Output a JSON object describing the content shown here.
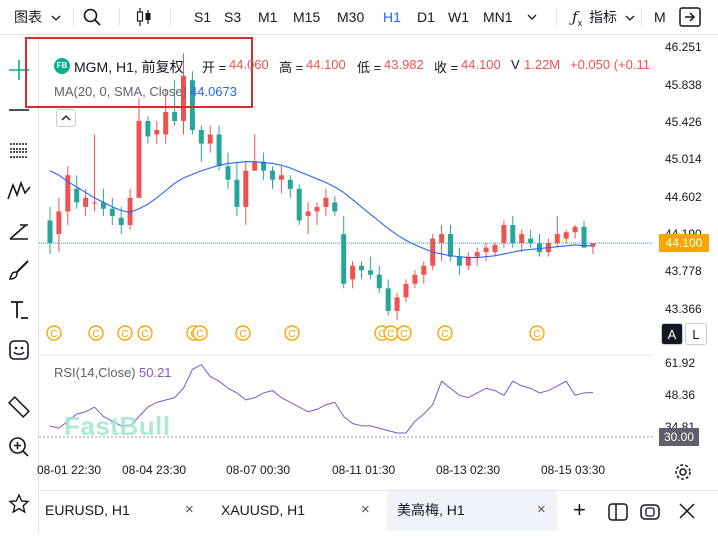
{
  "toolbar": {
    "chart_type_label": "图表",
    "timeframes": [
      "S1",
      "S3",
      "M1",
      "M15",
      "M30",
      "H1",
      "D1",
      "W1",
      "MN1"
    ],
    "active_timeframe": "H1",
    "indicators_label": "指标",
    "m_label": "M"
  },
  "legend": {
    "symbol_badge": "FB",
    "symbol": "MGM, H1, 前复权",
    "open_label": "开 =",
    "open": "44.060",
    "high_label": "高 =",
    "high": "44.100",
    "low_label": "低 =",
    "low": "43.982",
    "close_label": "收 =",
    "close": "44.100",
    "volume_label": "V",
    "volume": "1.22M",
    "change": "+0.050 (+0.11",
    "ma_label": "MA(20, 0, SMA, Close)",
    "ma_value": "44.0673"
  },
  "rsi": {
    "label": "RSI(14,Close)",
    "value": "50.21"
  },
  "watermark": "FastBull",
  "y_axis": {
    "price_ticks": [
      "46.251",
      "45.838",
      "45.426",
      "45.014",
      "44.602",
      "44.190",
      "43.778",
      "43.366"
    ],
    "current_price": "44.100",
    "rsi_ticks": [
      "61.92",
      "48.36",
      "34.81"
    ],
    "rsi_current": "30.00",
    "scale_auto": "A",
    "scale_log": "L"
  },
  "x_axis": {
    "ticks": [
      "08-01 22:30",
      "08-04 23:30",
      "08-07 00:30",
      "08-11 01:30",
      "08-13 02:30",
      "08-15 03:30"
    ]
  },
  "tabs": [
    {
      "label": "EURUSD, H1",
      "close": "×"
    },
    {
      "label": "XAUUSD, H1",
      "close": "×"
    },
    {
      "label": "美高梅, H1",
      "close": "×",
      "active": true
    }
  ],
  "tabs_add": "+",
  "colors": {
    "up": "#ef5350",
    "down": "#26a69a",
    "ma": "#2962ff",
    "rsi": "#7e57c2",
    "accent": "#2962ff",
    "current_price_bg": "#f7a600",
    "event_icon": "#f7a600",
    "highlight_box": "#d32f2f"
  },
  "chart_data": {
    "type": "candlestick",
    "symbol": "MGM",
    "timeframe": "H1",
    "ylim": [
      43.25,
      46.4
    ],
    "candles": [
      {
        "o": 44.35,
        "h": 44.5,
        "l": 43.98,
        "c": 44.1
      },
      {
        "o": 44.2,
        "h": 44.6,
        "l": 44.0,
        "c": 44.45
      },
      {
        "o": 44.45,
        "h": 44.95,
        "l": 44.3,
        "c": 44.85
      },
      {
        "o": 44.7,
        "h": 44.85,
        "l": 44.48,
        "c": 44.55
      },
      {
        "o": 44.5,
        "h": 44.7,
        "l": 44.4,
        "c": 44.6
      },
      {
        "o": 44.55,
        "h": 45.3,
        "l": 44.45,
        "c": 44.55
      },
      {
        "o": 44.55,
        "h": 44.7,
        "l": 44.4,
        "c": 44.48
      },
      {
        "o": 44.48,
        "h": 44.6,
        "l": 44.3,
        "c": 44.4
      },
      {
        "o": 44.38,
        "h": 44.5,
        "l": 44.2,
        "c": 44.3
      },
      {
        "o": 44.3,
        "h": 44.7,
        "l": 44.25,
        "c": 44.6
      },
      {
        "o": 44.6,
        "h": 45.7,
        "l": 44.6,
        "c": 45.45
      },
      {
        "o": 45.45,
        "h": 45.5,
        "l": 45.2,
        "c": 45.28
      },
      {
        "o": 45.3,
        "h": 45.45,
        "l": 45.2,
        "c": 45.35
      },
      {
        "o": 45.3,
        "h": 45.8,
        "l": 45.2,
        "c": 45.55
      },
      {
        "o": 45.55,
        "h": 45.9,
        "l": 45.4,
        "c": 45.45
      },
      {
        "o": 45.45,
        "h": 46.2,
        "l": 45.3,
        "c": 45.95
      },
      {
        "o": 45.9,
        "h": 46.0,
        "l": 45.3,
        "c": 45.35
      },
      {
        "o": 45.35,
        "h": 45.4,
        "l": 45.0,
        "c": 45.2
      },
      {
        "o": 45.2,
        "h": 45.4,
        "l": 45.1,
        "c": 45.3
      },
      {
        "o": 45.3,
        "h": 45.4,
        "l": 44.9,
        "c": 44.95
      },
      {
        "o": 44.95,
        "h": 45.1,
        "l": 44.7,
        "c": 44.8
      },
      {
        "o": 44.8,
        "h": 45.0,
        "l": 44.4,
        "c": 44.5
      },
      {
        "o": 44.5,
        "h": 45.0,
        "l": 44.3,
        "c": 44.9
      },
      {
        "o": 44.9,
        "h": 45.3,
        "l": 44.9,
        "c": 45.0
      },
      {
        "o": 45.0,
        "h": 45.1,
        "l": 44.8,
        "c": 44.9
      },
      {
        "o": 44.9,
        "h": 44.95,
        "l": 44.7,
        "c": 44.8
      },
      {
        "o": 44.8,
        "h": 44.95,
        "l": 44.65,
        "c": 44.85
      },
      {
        "o": 44.8,
        "h": 44.85,
        "l": 44.6,
        "c": 44.7
      },
      {
        "o": 44.7,
        "h": 44.75,
        "l": 44.3,
        "c": 44.35
      },
      {
        "o": 44.4,
        "h": 44.55,
        "l": 44.2,
        "c": 44.45
      },
      {
        "o": 44.45,
        "h": 44.55,
        "l": 44.3,
        "c": 44.5
      },
      {
        "o": 44.5,
        "h": 44.7,
        "l": 44.4,
        "c": 44.6
      },
      {
        "o": 44.55,
        "h": 44.62,
        "l": 44.4,
        "c": 44.45
      },
      {
        "o": 44.2,
        "h": 44.4,
        "l": 43.6,
        "c": 43.65
      },
      {
        "o": 43.7,
        "h": 43.9,
        "l": 43.6,
        "c": 43.85
      },
      {
        "o": 43.85,
        "h": 43.9,
        "l": 43.7,
        "c": 43.8
      },
      {
        "o": 43.8,
        "h": 43.95,
        "l": 43.7,
        "c": 43.75
      },
      {
        "o": 43.75,
        "h": 43.85,
        "l": 43.55,
        "c": 43.6
      },
      {
        "o": 43.6,
        "h": 43.7,
        "l": 43.3,
        "c": 43.35
      },
      {
        "o": 43.35,
        "h": 43.55,
        "l": 43.25,
        "c": 43.5
      },
      {
        "o": 43.5,
        "h": 43.7,
        "l": 43.45,
        "c": 43.65
      },
      {
        "o": 43.65,
        "h": 43.8,
        "l": 43.6,
        "c": 43.75
      },
      {
        "o": 43.75,
        "h": 43.9,
        "l": 43.65,
        "c": 43.85
      },
      {
        "o": 43.85,
        "h": 44.2,
        "l": 43.8,
        "c": 44.15
      },
      {
        "o": 44.1,
        "h": 44.3,
        "l": 43.9,
        "c": 44.2
      },
      {
        "o": 44.2,
        "h": 44.3,
        "l": 43.9,
        "c": 43.95
      },
      {
        "o": 43.95,
        "h": 44.05,
        "l": 43.75,
        "c": 43.85
      },
      {
        "o": 43.85,
        "h": 44.0,
        "l": 43.8,
        "c": 43.95
      },
      {
        "o": 43.95,
        "h": 44.05,
        "l": 43.85,
        "c": 44.0
      },
      {
        "o": 44.0,
        "h": 44.1,
        "l": 43.9,
        "c": 44.05
      },
      {
        "o": 44.0,
        "h": 44.1,
        "l": 43.95,
        "c": 44.08
      },
      {
        "o": 44.1,
        "h": 44.35,
        "l": 44.05,
        "c": 44.3
      },
      {
        "o": 44.3,
        "h": 44.4,
        "l": 44.05,
        "c": 44.1
      },
      {
        "o": 44.1,
        "h": 44.25,
        "l": 44.0,
        "c": 44.2
      },
      {
        "o": 44.15,
        "h": 44.25,
        "l": 44.05,
        "c": 44.1
      },
      {
        "o": 44.1,
        "h": 44.2,
        "l": 43.95,
        "c": 44.0
      },
      {
        "o": 44.0,
        "h": 44.15,
        "l": 43.95,
        "c": 44.1
      },
      {
        "o": 44.1,
        "h": 44.4,
        "l": 44.05,
        "c": 44.2
      },
      {
        "o": 44.15,
        "h": 44.25,
        "l": 44.1,
        "c": 44.22
      },
      {
        "o": 44.22,
        "h": 44.3,
        "l": 44.15,
        "c": 44.28
      },
      {
        "o": 44.28,
        "h": 44.35,
        "l": 44.05,
        "c": 44.05
      },
      {
        "o": 44.06,
        "h": 44.1,
        "l": 43.98,
        "c": 44.1
      }
    ],
    "ma": [
      44.9,
      44.85,
      44.78,
      44.72,
      44.66,
      44.6,
      44.55,
      44.5,
      44.46,
      44.44,
      44.48,
      44.53,
      44.6,
      44.68,
      44.76,
      44.82,
      44.86,
      44.9,
      44.93,
      44.96,
      44.98,
      44.99,
      45.0,
      45.0,
      44.99,
      44.98,
      44.96,
      44.93,
      44.89,
      44.85,
      44.81,
      44.77,
      44.72,
      44.66,
      44.58,
      44.5,
      44.42,
      44.34,
      44.26,
      44.19,
      44.13,
      44.08,
      44.04,
      44.0,
      43.98,
      43.96,
      43.95,
      43.94,
      43.94,
      43.95,
      43.96,
      43.98,
      44.0,
      44.02,
      44.03,
      44.04,
      44.05,
      44.06,
      44.07,
      44.08,
      44.07,
      44.07
    ],
    "rsi": [
      36,
      35,
      38,
      41,
      42,
      44,
      40,
      38,
      36,
      36,
      40,
      44,
      46,
      47,
      48,
      52,
      60,
      62,
      57,
      55,
      52,
      50,
      47,
      48,
      50,
      51,
      48,
      46,
      44,
      42,
      43,
      45,
      46,
      40,
      37,
      36,
      36,
      35,
      34,
      33,
      33,
      38,
      41,
      45,
      55,
      52,
      49,
      48,
      50,
      52,
      51,
      49,
      55,
      53,
      52,
      50,
      51,
      53,
      55,
      49,
      50,
      50.21
    ],
    "rsi_ylim": [
      30,
      64
    ],
    "rsi_levels": [
      30
    ],
    "event_count": 13
  }
}
